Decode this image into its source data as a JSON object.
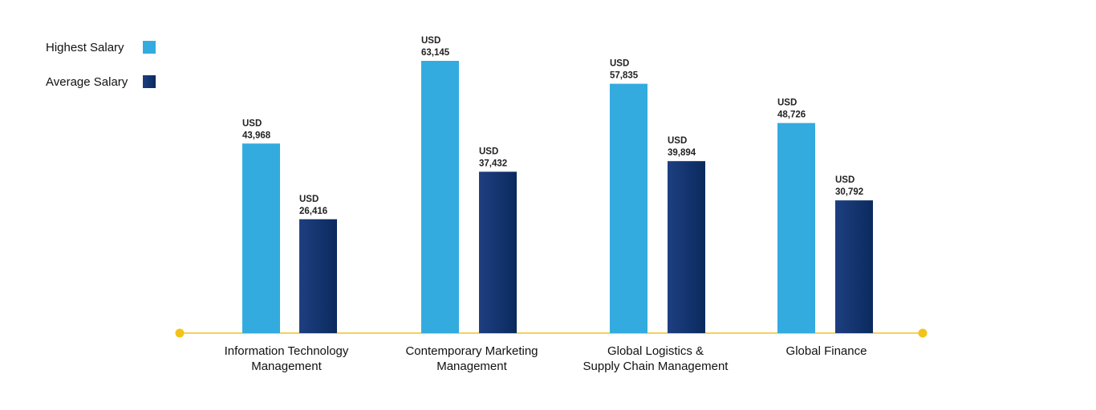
{
  "chart_data": {
    "type": "bar",
    "categories": [
      [
        "Information Technology",
        "Management"
      ],
      [
        "Contemporary Marketing",
        "Management"
      ],
      [
        "Global Logistics &",
        "Supply Chain Management"
      ],
      [
        "Global Finance"
      ]
    ],
    "series": [
      {
        "name": "Highest Salary",
        "values": [
          43968,
          63145,
          57835,
          48726
        ],
        "color": "#33ABDF"
      },
      {
        "name": "Average Salary",
        "values": [
          26416,
          37432,
          39894,
          30792
        ],
        "color": "#0E2F66"
      }
    ],
    "value_labels": {
      "currency": "USD",
      "Highest Salary": [
        "43,968",
        "63,145",
        "57,835",
        "48,726"
      ],
      "Average Salary": [
        "26,416",
        "37,432",
        "39,894",
        "30,792"
      ]
    },
    "ylim": [
      0,
      63145
    ],
    "grid": false,
    "legend": "top-left",
    "baseline_color": "#F2C31B"
  }
}
